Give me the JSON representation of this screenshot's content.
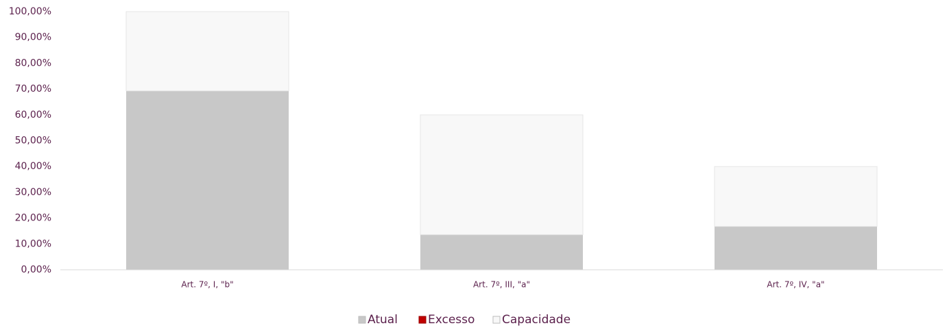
{
  "chart_data": {
    "type": "stacked_bar",
    "categories": [
      "Art. 7º, I, \"b\"",
      "Art. 7º, III, \"a\"",
      "Art. 7º, IV, \"a\""
    ],
    "series": [
      {
        "name": "Atual",
        "color": "#c8c8c8",
        "values": [
          69.3,
          13.6,
          16.8
        ]
      },
      {
        "name": "Excesso",
        "color": "#c00000",
        "values": [
          0,
          0,
          0
        ]
      },
      {
        "name": "Capacidade",
        "color": "#f8f8f8",
        "values": [
          30.7,
          46.4,
          23.2
        ]
      }
    ],
    "ylim": [
      0,
      100
    ],
    "yticks": [
      {
        "value": 0,
        "label": "0,00%"
      },
      {
        "value": 10,
        "label": "10,00%"
      },
      {
        "value": 20,
        "label": "20,00%"
      },
      {
        "value": 30,
        "label": "30,00%"
      },
      {
        "value": 40,
        "label": "40,00%"
      },
      {
        "value": 50,
        "label": "50,00%"
      },
      {
        "value": 60,
        "label": "60,00%"
      },
      {
        "value": 70,
        "label": "70,00%"
      },
      {
        "value": 80,
        "label": "80,00%"
      },
      {
        "value": 90,
        "label": "90,00%"
      },
      {
        "value": 100,
        "label": "100,00%"
      }
    ],
    "grid": false,
    "legend": "bottom"
  }
}
